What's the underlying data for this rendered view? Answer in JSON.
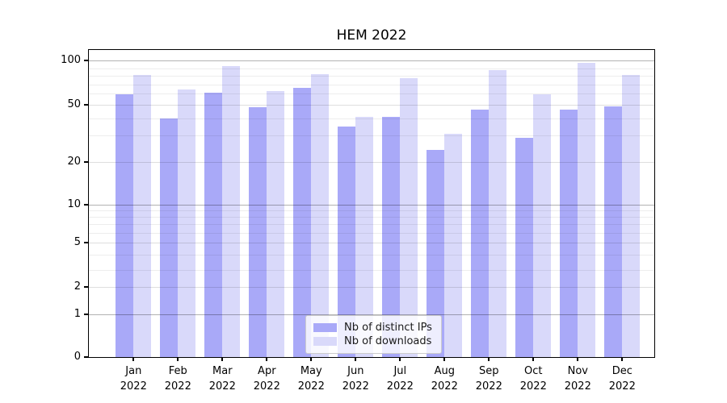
{
  "chart_data": {
    "type": "bar",
    "title": "HEM 2022",
    "categories": [
      "Jan 2022",
      "Feb 2022",
      "Mar 2022",
      "Apr 2022",
      "May 2022",
      "Jun 2022",
      "Jul 2022",
      "Aug 2022",
      "Sep 2022",
      "Oct 2022",
      "Nov 2022",
      "Dec 2022"
    ],
    "series": [
      {
        "name": "Nb of distinct IPs",
        "color": "#a9a9f8",
        "values": [
          59,
          40,
          61,
          48,
          66,
          35,
          41,
          24,
          46,
          29,
          46,
          49
        ]
      },
      {
        "name": "Nb of downloads",
        "color": "#d9d9fa",
        "values": [
          81,
          64,
          93,
          63,
          82,
          41,
          77,
          31,
          88,
          59,
          97,
          81
        ]
      }
    ],
    "yscale": "log-like",
    "y_tick_labels": [
      100,
      50,
      20,
      10,
      5,
      2,
      1,
      0
    ],
    "ylim": [
      0,
      110
    ],
    "grid": true,
    "legend_position": "lower center"
  }
}
